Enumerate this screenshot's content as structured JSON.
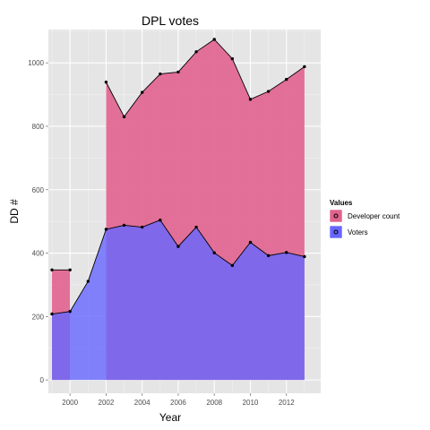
{
  "chart_data": {
    "type": "area",
    "title": "DPL votes",
    "xlabel": "Year",
    "ylabel": "DD #",
    "xlim": [
      1998.8,
      2013.9
    ],
    "ylim": [
      -42,
      1105
    ],
    "x_ticks": [
      2000,
      2002,
      2004,
      2006,
      2008,
      2010,
      2012
    ],
    "y_ticks": [
      0,
      200,
      400,
      600,
      800,
      1000
    ],
    "grid": true,
    "legend": {
      "title": "Values",
      "position": "right"
    },
    "series": [
      {
        "name": "Developer count",
        "color": "#E0628E",
        "x": [
          1999,
          2000,
          2002,
          2003,
          2004,
          2005,
          2006,
          2007,
          2008,
          2009,
          2010,
          2011,
          2012,
          2013
        ],
        "values": [
          347,
          347,
          939,
          830,
          907,
          965,
          971,
          1035,
          1074,
          1013,
          885,
          910,
          948,
          988
        ],
        "area_spans": [
          [
            1999,
            2000
          ],
          [
            2002,
            2013
          ]
        ]
      },
      {
        "name": "Voters",
        "color": "#6666FF",
        "x": [
          1999,
          2000,
          2001,
          2002,
          2003,
          2004,
          2005,
          2006,
          2007,
          2008,
          2009,
          2010,
          2011,
          2012,
          2013
        ],
        "values": [
          208,
          216,
          311,
          475,
          488,
          482,
          504,
          421,
          482,
          401,
          361,
          434,
          392,
          402,
          389
        ],
        "area_spans": [
          [
            1999,
            2013
          ]
        ]
      }
    ]
  }
}
